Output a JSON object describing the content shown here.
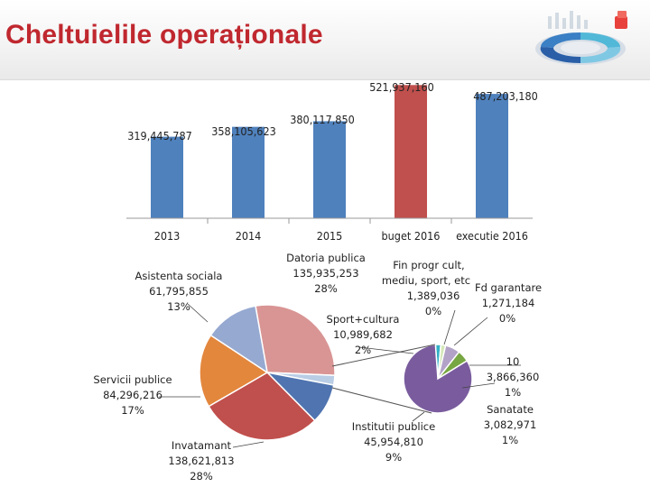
{
  "title": "Cheltuielile operaționale",
  "colors": {
    "title": "#c0282f",
    "bar_default": "#4f81bd",
    "bar_highlight": "#c0504d"
  },
  "chart_data": [
    {
      "type": "bar",
      "categories": [
        "2013",
        "2014",
        "2015",
        "buget 2016",
        "executie 2016"
      ],
      "values": [
        319445787,
        358105623,
        380117850,
        521937160,
        487203180
      ],
      "value_labels": [
        "319,445,787",
        "358,105,623",
        "380,117,850",
        "521,937,160",
        "487,203,180"
      ],
      "highlight_index": 3,
      "ylim": [
        0,
        530000000
      ],
      "grid": false,
      "legend": "none"
    },
    {
      "type": "pie",
      "slices": [
        {
          "label": "Datoria publica",
          "value": 135935253,
          "value_text": "135,935,253",
          "percent": "28%",
          "color": "#d99594"
        },
        {
          "label": "Sport+cultura",
          "value": 10989682,
          "value_text": "10,989,682",
          "percent": "2%",
          "color": "#b9cde5"
        },
        {
          "label": "Institutii publice",
          "value": 45954810,
          "value_text": "45,954,810",
          "percent": "9%",
          "color": "#4f74b0"
        },
        {
          "label": "Invatamant",
          "value": 138621813,
          "value_text": "138,621,813",
          "percent": "28%",
          "color": "#c0504d"
        },
        {
          "label": "Servicii publice",
          "value": 84296216,
          "value_text": "84,296,216",
          "percent": "17%",
          "color": "#e3873d"
        },
        {
          "label": "Asistenta sociala",
          "value": 61795855,
          "value_text": "61,795,855",
          "percent": "13%",
          "color": "#96a9d1"
        }
      ],
      "exploded_detail": {
        "parent_slice": "Institutii publice",
        "slices": [
          {
            "label": "Fin progr cult, mediu, sport, etc",
            "value": 1389036,
            "value_text": "1,389,036",
            "percent": "0%",
            "color": "#31b0c6"
          },
          {
            "label": "Fd garantare",
            "value": 1271184,
            "value_text": "1,271,184",
            "percent": "0%",
            "color": "#d4e8b8"
          },
          {
            "label": "10",
            "value": 3866360,
            "value_text": "3,866,360",
            "percent": "1%",
            "color": "#b3a2c7"
          },
          {
            "label": "Sanatate",
            "value": 3082971,
            "value_text": "3,082,971",
            "percent": "1%",
            "color": "#77a742"
          },
          {
            "label": "Institutii publice",
            "value": 45954810,
            "value_text": "45,954,810",
            "percent": "9%",
            "color": "#7a5c9e"
          }
        ]
      }
    }
  ]
}
